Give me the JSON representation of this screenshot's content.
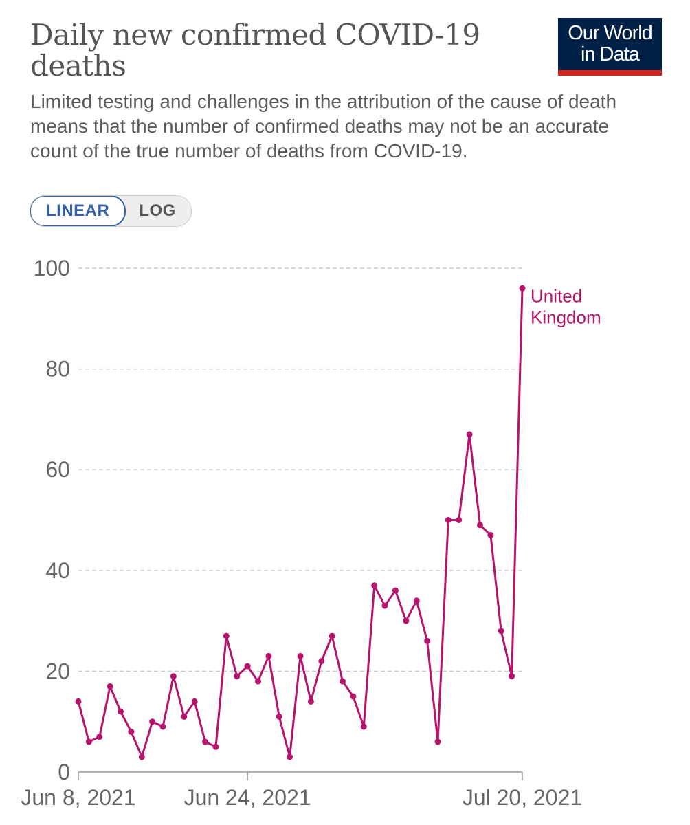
{
  "header": {
    "title": "Daily new confirmed COVID-19 deaths",
    "subtitle": "Limited testing and challenges in the attribution of the cause of death means that the number of confirmed deaths may not be an accurate count of the true number of deaths from COVID-19.",
    "logo_line1": "Our World",
    "logo_line2": "in Data",
    "logo_colors": {
      "background": "#002147",
      "stripe": "#ce261e"
    }
  },
  "scale_toggle": {
    "linear_label": "LINEAR",
    "log_label": "LOG",
    "selected": "LINEAR"
  },
  "colors": {
    "series": "#b7136d",
    "grid": "#cccccc",
    "tick_text": "#666666"
  },
  "chart_data": {
    "type": "line",
    "y_scale": "linear",
    "ylim": [
      0,
      100
    ],
    "y_ticks": [
      0,
      20,
      40,
      60,
      80,
      100
    ],
    "y_tick_labels": [
      "0",
      "20",
      "40",
      "60",
      "80",
      "100"
    ],
    "x_range": [
      "2021-06-08",
      "2021-07-20"
    ],
    "x_ticks": [
      {
        "date": "2021-06-08",
        "label": "Jun 8, 2021"
      },
      {
        "date": "2021-06-24",
        "label": "Jun 24, 2021"
      },
      {
        "date": "2021-07-20",
        "label": "Jul 20, 2021"
      }
    ],
    "grid": "horizontal dashed",
    "series": [
      {
        "name": "United Kingdom",
        "label_lines": [
          "United",
          "Kingdom"
        ],
        "color": "#b7136d",
        "x": [
          "2021-06-08",
          "2021-06-09",
          "2021-06-10",
          "2021-06-11",
          "2021-06-12",
          "2021-06-13",
          "2021-06-14",
          "2021-06-15",
          "2021-06-16",
          "2021-06-17",
          "2021-06-18",
          "2021-06-19",
          "2021-06-20",
          "2021-06-21",
          "2021-06-22",
          "2021-06-23",
          "2021-06-24",
          "2021-06-25",
          "2021-06-26",
          "2021-06-27",
          "2021-06-28",
          "2021-06-29",
          "2021-06-30",
          "2021-07-01",
          "2021-07-02",
          "2021-07-03",
          "2021-07-04",
          "2021-07-05",
          "2021-07-06",
          "2021-07-07",
          "2021-07-08",
          "2021-07-09",
          "2021-07-10",
          "2021-07-11",
          "2021-07-12",
          "2021-07-13",
          "2021-07-14",
          "2021-07-15",
          "2021-07-16",
          "2021-07-17",
          "2021-07-18",
          "2021-07-19",
          "2021-07-20"
        ],
        "values": [
          14,
          6,
          7,
          17,
          12,
          8,
          3,
          10,
          9,
          19,
          11,
          14,
          6,
          5,
          27,
          19,
          21,
          18,
          23,
          11,
          3,
          23,
          14,
          22,
          27,
          18,
          15,
          9,
          37,
          33,
          36,
          30,
          34,
          26,
          6,
          50,
          50,
          67,
          49,
          47,
          28,
          19,
          96
        ]
      }
    ]
  }
}
